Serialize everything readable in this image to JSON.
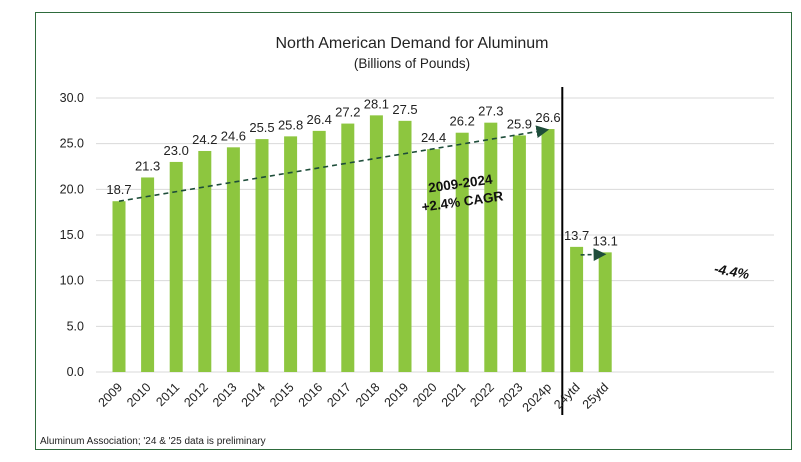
{
  "chart_data": {
    "type": "bar",
    "title": "North American Demand for Aluminum",
    "subtitle": "(Billions of Pounds)",
    "categories": [
      "2009",
      "2010",
      "2011",
      "2012",
      "2013",
      "2014",
      "2015",
      "2016",
      "2017",
      "2018",
      "2019",
      "2020",
      "2021",
      "2022",
      "2023",
      "2024p",
      "24ytd",
      "25ytd"
    ],
    "values": [
      18.7,
      21.3,
      23.0,
      24.2,
      24.6,
      25.5,
      25.8,
      26.4,
      27.2,
      28.1,
      27.5,
      24.4,
      26.2,
      27.3,
      25.9,
      26.6,
      13.7,
      13.1
    ],
    "data_labels": [
      "18.7",
      "21.3",
      "23.0",
      "24.2",
      "24.6",
      "25.5",
      "25.8",
      "26.4",
      "27.2",
      "28.1",
      "27.5",
      "24.4",
      "26.2",
      "27.3",
      "25.9",
      "26.6",
      "13.7",
      "13.1"
    ],
    "ylim": [
      0,
      30
    ],
    "yticks": [
      "0.0",
      "5.0",
      "10.0",
      "15.0",
      "20.0",
      "25.0",
      "30.0"
    ],
    "ytick_values": [
      0,
      5,
      10,
      15,
      20,
      25,
      30
    ],
    "xlabel": "",
    "ylabel": "",
    "grid": true,
    "bar_color": "#8dc63f",
    "divider_after_index": 15,
    "annotations": [
      {
        "lines": [
          "2009-2024",
          "+2.4% CAGR"
        ],
        "from_index": 0,
        "to_index": 15
      },
      {
        "lines": [
          "-4.4%"
        ],
        "from_index": 16,
        "to_index": 17
      }
    ]
  },
  "source_note": "Aluminum Association; '24 & '25 data is preliminary"
}
